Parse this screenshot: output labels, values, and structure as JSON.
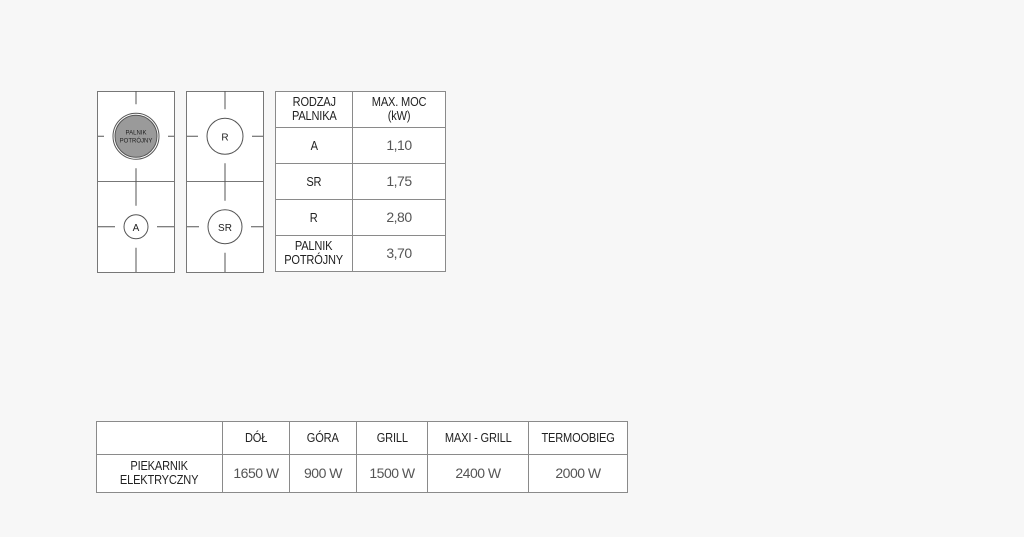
{
  "hobs": [
    {
      "burners": [
        {
          "label": "PALNIK POTRÓJNY",
          "label_lines": [
            "PALNIK",
            "POTRÓJNY"
          ],
          "filled": true
        },
        {
          "label": "A",
          "label_lines": [
            "A"
          ],
          "filled": false
        }
      ]
    },
    {
      "burners": [
        {
          "label": "R",
          "label_lines": [
            "R"
          ],
          "filled": false
        },
        {
          "label": "SR",
          "label_lines": [
            "SR"
          ],
          "filled": false
        }
      ]
    }
  ],
  "burner_table": {
    "headers": [
      "RODZAJ PALNIKA",
      "MAX. MOC (kW)"
    ],
    "header_lines": [
      [
        "RODZAJ",
        "PALNIKA"
      ],
      [
        "MAX. MOC",
        "(kW)"
      ]
    ],
    "rows": [
      {
        "type": "A",
        "power": "1,10"
      },
      {
        "type": "SR",
        "power": "1,75"
      },
      {
        "type": "R",
        "power": "2,80"
      },
      {
        "type": "PALNIK POTRÓJNY",
        "type_lines": [
          "PALNIK",
          "POTRÓJNY"
        ],
        "power": "3,70"
      }
    ]
  },
  "oven_table": {
    "columns": [
      "DÓŁ",
      "GÓRA",
      "GRILL",
      "MAXI - GRILL",
      "TERMOOBIEG"
    ],
    "row_label": "PIEKARNIK ELEKTRYCZNY",
    "row_label_lines": [
      "PIEKARNIK",
      "ELEKTRYCZNY"
    ],
    "values": [
      "1650 W",
      "900 W",
      "1500 W",
      "2400 W",
      "2000 W"
    ]
  },
  "colors": {
    "burner_fill": "#9a9a9a",
    "line": "#555555",
    "background": "#f7f7f7"
  }
}
